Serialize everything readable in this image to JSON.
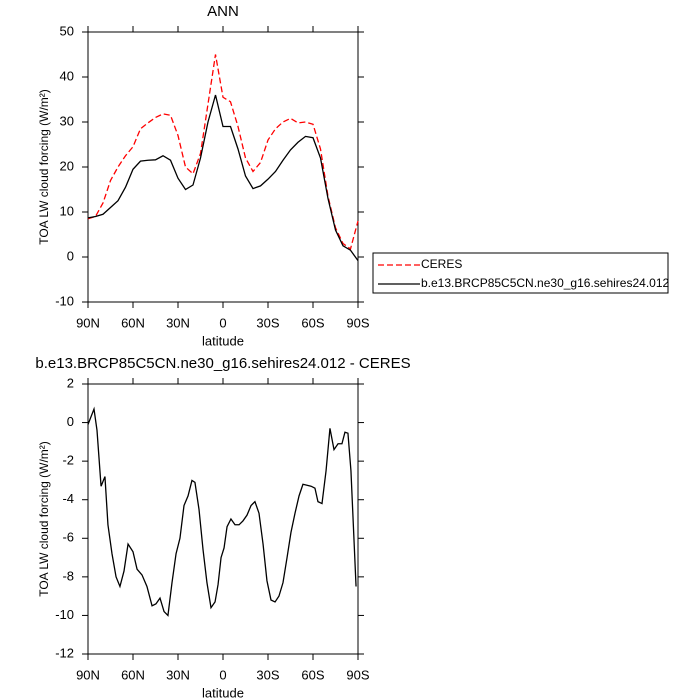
{
  "chart_data": [
    {
      "type": "line",
      "title": "ANN",
      "x_label": "latitude",
      "y_label": "TOA LW cloud forcing (W/m²)",
      "x": [
        90,
        85,
        80,
        75,
        70,
        65,
        60,
        55,
        50,
        45,
        40,
        35,
        30,
        25,
        20,
        15,
        10,
        5,
        0,
        -5,
        -10,
        -15,
        -20,
        -25,
        -30,
        -35,
        -40,
        -45,
        -50,
        -55,
        -60,
        -65,
        -70,
        -75,
        -80,
        -85,
        -90
      ],
      "series": [
        {
          "name": "CERES",
          "color": "#ff0000",
          "line_style": "dashed",
          "values": [
            8.5,
            9,
            12,
            17,
            20,
            22.5,
            24.5,
            28.5,
            29.8,
            31,
            31.8,
            31.5,
            27,
            20,
            18.5,
            23,
            34,
            45,
            35.5,
            34.5,
            29,
            22,
            19,
            21,
            26,
            28.5,
            30,
            30.8,
            29.8,
            30,
            29.5,
            24,
            13.5,
            6.5,
            3,
            1.8,
            8
          ]
        },
        {
          "name": "b.e13.BRCP85C5CN.ne30_g16.sehires24.012",
          "color": "#000000",
          "line_style": "solid",
          "values": [
            8.7,
            9,
            9.5,
            11,
            12.5,
            15.5,
            19.5,
            21.3,
            21.5,
            21.6,
            22.5,
            21.5,
            17.5,
            15,
            16,
            22,
            30,
            36,
            29,
            29,
            24,
            18,
            15.2,
            15.8,
            17.3,
            19,
            21.5,
            23.8,
            25.5,
            26.8,
            26.5,
            22,
            13,
            6,
            2.5,
            1.5,
            -0.8
          ]
        }
      ],
      "xlim": [
        90,
        -90
      ],
      "xticks": [
        {
          "value": 90,
          "label": "90N"
        },
        {
          "value": 60,
          "label": "60N"
        },
        {
          "value": 30,
          "label": "30N"
        },
        0,
        {
          "value": -30,
          "label": "30S"
        },
        {
          "value": -60,
          "label": "60S"
        },
        {
          "value": -90,
          "label": "90S"
        }
      ],
      "ylim": [
        -10,
        50
      ],
      "yticks": [
        -10,
        0,
        10,
        20,
        30,
        40,
        50
      ],
      "legend": "outside-right"
    },
    {
      "type": "line",
      "title": "b.e13.BRCP85C5CN.ne30_g16.sehires24.012 - CERES",
      "x_label": "latitude",
      "y_label": "TOA LW cloud forcing (W/m²)",
      "x": [
        90,
        86,
        84,
        81.3,
        78.7,
        76.7,
        74,
        71.3,
        68.7,
        66,
        63.3,
        60,
        57.3,
        54,
        50.7,
        47.3,
        44.7,
        42,
        39.3,
        36.7,
        34,
        31.3,
        28.7,
        26,
        23.3,
        20.7,
        18.7,
        16,
        13.3,
        10.7,
        8,
        5.3,
        3.3,
        1.3,
        -0.7,
        -2.7,
        -5.3,
        -8,
        -10.7,
        -13.3,
        -16,
        -18.7,
        -21.3,
        -24,
        -26.7,
        -29.3,
        -32,
        -34.7,
        -37.3,
        -40,
        -42.7,
        -45.3,
        -48,
        -50.7,
        -53.3,
        -56,
        -58.7,
        -61.3,
        -63.3,
        -66,
        -68.7,
        -71.3,
        -74,
        -76.7,
        -79.3,
        -81.3,
        -83.3,
        -85.3,
        -88.7
      ],
      "series": [
        {
          "color": "#000000",
          "line_style": "solid",
          "values": [
            -0.1,
            0.7,
            -0.4,
            -3.3,
            -2.8,
            -5.3,
            -6.8,
            -8,
            -8.5,
            -7.7,
            -6.3,
            -6.7,
            -7.6,
            -7.9,
            -8.5,
            -9.5,
            -9.4,
            -9.1,
            -9.8,
            -10,
            -8.3,
            -6.8,
            -6,
            -4.3,
            -3.8,
            -3,
            -3.1,
            -4.5,
            -6.6,
            -8.3,
            -9.6,
            -9.3,
            -8.4,
            -7,
            -6.5,
            -5.4,
            -5,
            -5.3,
            -5.3,
            -5.1,
            -4.8,
            -4.3,
            -4.1,
            -4.7,
            -6.3,
            -8.2,
            -9.2,
            -9.3,
            -9,
            -8.3,
            -7,
            -5.7,
            -4.7,
            -3.8,
            -3.2,
            -3.25,
            -3.3,
            -3.4,
            -4.1,
            -4.2,
            -2.5,
            -0.3,
            -1.4,
            -1.1,
            -1.1,
            -0.5,
            -0.55,
            -2.5,
            -8.5
          ]
        }
      ],
      "xlim": [
        90,
        -90
      ],
      "xticks": [
        {
          "value": 90,
          "label": "90N"
        },
        {
          "value": 60,
          "label": "60N"
        },
        {
          "value": 30,
          "label": "30N"
        },
        0,
        {
          "value": -30,
          "label": "30S"
        },
        {
          "value": -60,
          "label": "60S"
        },
        {
          "value": -90,
          "label": "90S"
        }
      ],
      "ylim": [
        -12,
        2
      ],
      "yticks": [
        -12,
        -10,
        -8,
        -6,
        -4,
        -2,
        0,
        2
      ]
    }
  ]
}
